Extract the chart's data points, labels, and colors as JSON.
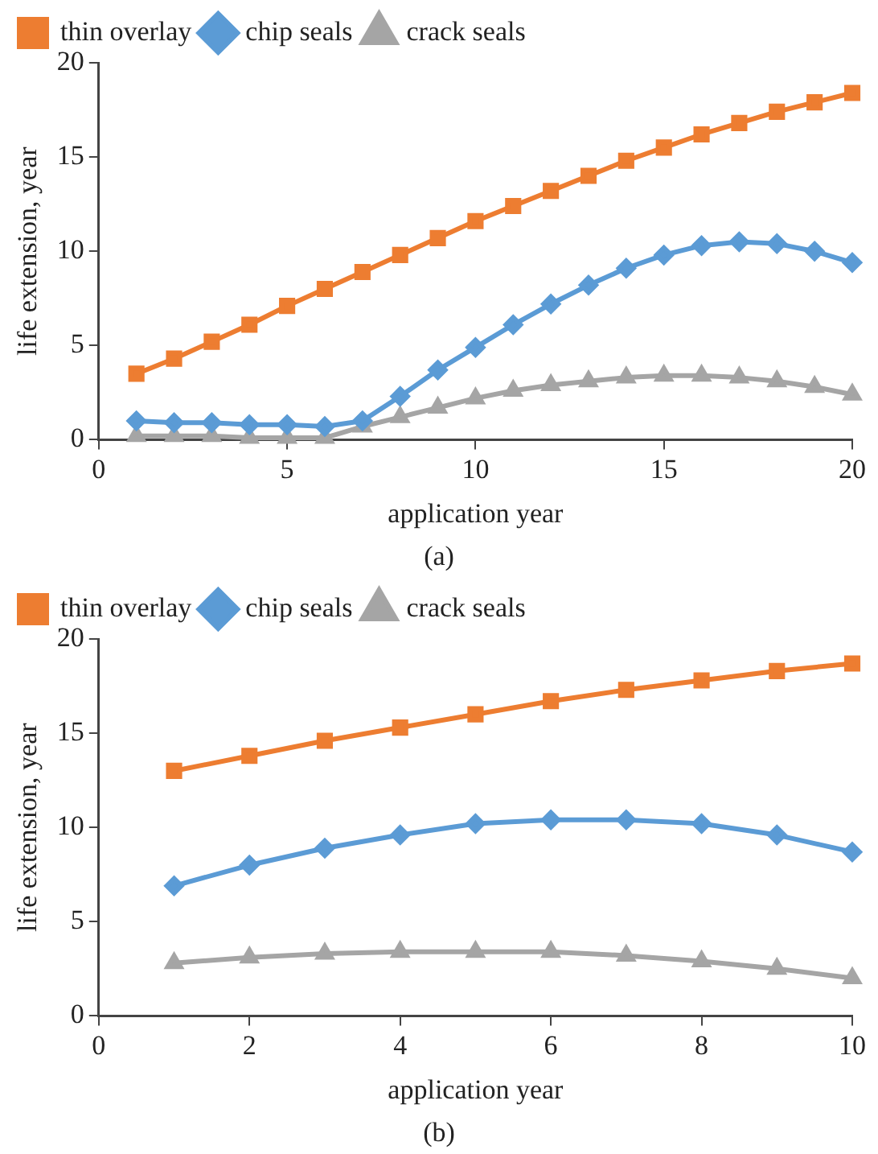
{
  "chart_data": [
    {
      "type": "line",
      "xlabel": "application year",
      "ylabel": "life extension, year",
      "annotations": [
        "(a)"
      ],
      "x": [
        1,
        2,
        3,
        4,
        5,
        6,
        7,
        8,
        9,
        10,
        11,
        12,
        13,
        14,
        15,
        16,
        17,
        18,
        19,
        20
      ],
      "xlim": [
        0,
        20
      ],
      "xticks": [
        0,
        5,
        10,
        15,
        20
      ],
      "ylim": [
        0,
        20
      ],
      "yticks": [
        0,
        5,
        10,
        15,
        20
      ],
      "grid": false,
      "legend": "top left",
      "series": [
        {
          "name": "thin overlay",
          "color": "#ed7d31",
          "marker": "square",
          "values": [
            3.5,
            4.3,
            5.2,
            6.1,
            7.1,
            8.0,
            8.9,
            9.8,
            10.7,
            11.6,
            12.4,
            13.2,
            14.0,
            14.8,
            15.5,
            16.2,
            16.8,
            17.4,
            17.9,
            18.4
          ]
        },
        {
          "name": "chip seals",
          "color": "#5b9bd5",
          "marker": "diamond",
          "values": [
            1.0,
            0.9,
            0.9,
            0.8,
            0.8,
            0.7,
            1.0,
            2.3,
            3.7,
            4.9,
            6.1,
            7.2,
            8.2,
            9.1,
            9.8,
            10.3,
            10.5,
            10.4,
            10.0,
            9.4
          ]
        },
        {
          "name": "crack seals",
          "color": "#a5a5a5",
          "marker": "triangle",
          "values": [
            0.2,
            0.2,
            0.2,
            0.1,
            0.1,
            0.1,
            0.7,
            1.2,
            1.7,
            2.2,
            2.6,
            2.9,
            3.1,
            3.3,
            3.4,
            3.4,
            3.3,
            3.1,
            2.8,
            2.4
          ]
        }
      ]
    },
    {
      "type": "line",
      "xlabel": "application year",
      "ylabel": "life extension, year",
      "annotations": [
        "(b)"
      ],
      "x": [
        1,
        2,
        3,
        4,
        5,
        6,
        7,
        8,
        9,
        10
      ],
      "xlim": [
        0,
        10
      ],
      "xticks": [
        0,
        2,
        4,
        6,
        8,
        10
      ],
      "ylim": [
        0,
        20
      ],
      "yticks": [
        0,
        5,
        10,
        15,
        20
      ],
      "grid": false,
      "legend": "top left",
      "series": [
        {
          "name": "thin overlay",
          "color": "#ed7d31",
          "marker": "square",
          "values": [
            13.0,
            13.8,
            14.6,
            15.3,
            16.0,
            16.7,
            17.3,
            17.8,
            18.3,
            18.7
          ]
        },
        {
          "name": "chip seals",
          "color": "#5b9bd5",
          "marker": "diamond",
          "values": [
            6.9,
            8.0,
            8.9,
            9.6,
            10.2,
            10.4,
            10.4,
            10.2,
            9.6,
            8.7
          ]
        },
        {
          "name": "crack seals",
          "color": "#a5a5a5",
          "marker": "triangle",
          "values": [
            2.8,
            3.1,
            3.3,
            3.4,
            3.4,
            3.4,
            3.2,
            2.9,
            2.5,
            2.0
          ]
        }
      ]
    }
  ]
}
